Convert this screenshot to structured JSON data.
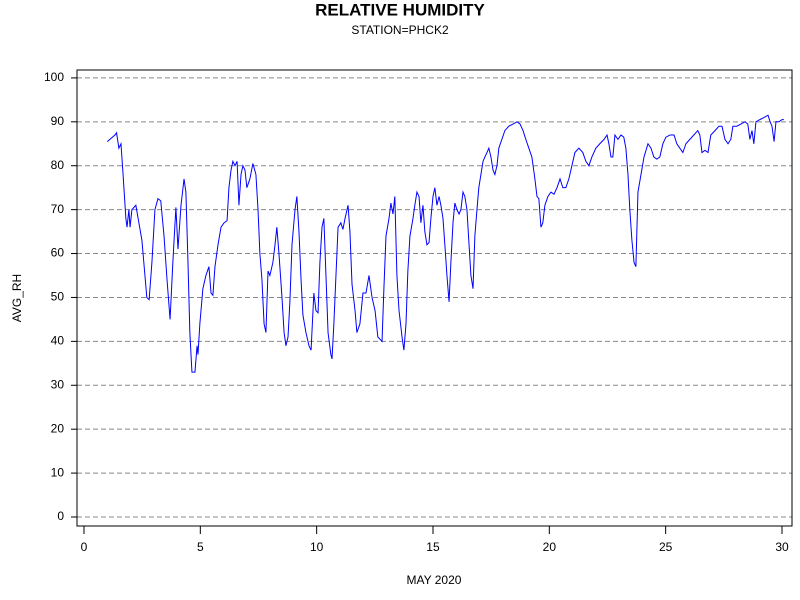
{
  "chart_data": {
    "type": "line",
    "title": "RELATIVE HUMIDITY",
    "subtitle": "STATION=PHCK2",
    "x_label": "MAY 2020",
    "y_label": "AVG_RH",
    "color": "#0000ff",
    "grid": true,
    "xlim": [
      -0.3,
      30.43
    ],
    "xticks": [
      0,
      5,
      10,
      15,
      20,
      25,
      30
    ],
    "ylim": [
      -2.05,
      101.8
    ],
    "yticks": [
      0,
      10,
      20,
      30,
      40,
      50,
      60,
      70,
      80,
      90,
      100
    ],
    "x": [
      1.0,
      1.33,
      1.4,
      1.5,
      1.59,
      1.68,
      1.8,
      1.85,
      1.93,
      1.98,
      2.06,
      2.23,
      2.36,
      2.49,
      2.62,
      2.7,
      2.8,
      2.92,
      3.05,
      3.18,
      3.3,
      3.44,
      3.57,
      3.7,
      3.82,
      3.95,
      4.04,
      4.17,
      4.3,
      4.38,
      4.47,
      4.55,
      4.64,
      4.77,
      4.86,
      4.9,
      4.98,
      5.11,
      5.24,
      5.37,
      5.46,
      5.54,
      5.63,
      5.76,
      5.89,
      6.02,
      6.15,
      6.23,
      6.32,
      6.4,
      6.49,
      6.58,
      6.66,
      6.75,
      6.83,
      6.92,
      7.0,
      7.13,
      7.26,
      7.39,
      7.48,
      7.56,
      7.65,
      7.74,
      7.82,
      7.91,
      7.99,
      8.12,
      8.21,
      8.29,
      8.38,
      8.51,
      8.6,
      8.68,
      8.77,
      8.85,
      8.94,
      9.07,
      9.15,
      9.24,
      9.33,
      9.41,
      9.54,
      9.67,
      9.76,
      9.88,
      9.97,
      10.06,
      10.14,
      10.23,
      10.31,
      10.4,
      10.49,
      10.61,
      10.66,
      10.74,
      10.83,
      10.92,
      11.04,
      11.13,
      11.22,
      11.35,
      11.43,
      11.52,
      11.65,
      11.73,
      11.86,
      11.99,
      12.12,
      12.25,
      12.38,
      12.51,
      12.63,
      12.81,
      12.89,
      12.98,
      13.11,
      13.19,
      13.28,
      13.36,
      13.45,
      13.54,
      13.67,
      13.75,
      13.84,
      13.92,
      14.01,
      14.14,
      14.22,
      14.31,
      14.4,
      14.48,
      14.57,
      14.65,
      14.74,
      14.83,
      14.91,
      15.0,
      15.08,
      15.17,
      15.26,
      15.34,
      15.43,
      15.51,
      15.6,
      15.69,
      15.77,
      15.86,
      15.94,
      16.03,
      16.12,
      16.2,
      16.29,
      16.37,
      16.46,
      16.55,
      16.63,
      16.72,
      16.8,
      16.89,
      16.97,
      17.06,
      17.15,
      17.23,
      17.32,
      17.4,
      17.49,
      17.58,
      17.66,
      17.75,
      17.83,
      17.96,
      18.09,
      18.26,
      18.44,
      18.61,
      18.74,
      18.87,
      18.99,
      19.12,
      19.25,
      19.38,
      19.47,
      19.55,
      19.64,
      19.72,
      19.81,
      19.94,
      20.07,
      20.2,
      20.33,
      20.46,
      20.58,
      20.71,
      20.84,
      20.97,
      21.1,
      21.27,
      21.44,
      21.57,
      21.7,
      21.83,
      22.0,
      22.17,
      22.35,
      22.48,
      22.56,
      22.65,
      22.73,
      22.82,
      22.95,
      23.08,
      23.2,
      23.29,
      23.38,
      23.46,
      23.55,
      23.64,
      23.72,
      23.81,
      23.94,
      24.07,
      24.24,
      24.37,
      24.49,
      24.62,
      24.75,
      24.88,
      25.01,
      25.19,
      25.36,
      25.48,
      25.61,
      25.74,
      25.87,
      26.04,
      26.21,
      26.38,
      26.47,
      26.56,
      26.69,
      26.82,
      26.94,
      27.12,
      27.29,
      27.42,
      27.55,
      27.68,
      27.8,
      27.89,
      28.06,
      28.23,
      28.41,
      28.53,
      28.62,
      28.71,
      28.79,
      28.88,
      29.05,
      29.23,
      29.4,
      29.49,
      29.57,
      29.66,
      29.74,
      29.87,
      30.0,
      30.08
    ],
    "values": [
      85.5,
      87,
      87.5,
      84,
      85,
      78,
      68,
      66,
      70,
      66,
      70,
      71,
      67,
      63,
      55,
      50,
      49.5,
      58,
      70,
      72.5,
      72,
      64,
      54,
      45,
      58,
      70.5,
      61,
      71,
      77,
      74,
      58,
      42,
      33,
      33,
      39,
      37,
      44,
      52,
      55,
      57,
      51,
      50.5,
      57,
      62,
      66,
      67,
      67.5,
      75,
      79,
      81,
      80,
      81,
      71,
      78,
      80,
      79,
      75,
      77,
      80.5,
      78,
      70,
      60,
      54,
      44,
      42,
      56,
      55,
      58,
      62,
      66,
      60,
      50,
      42,
      39,
      41,
      49,
      62,
      70,
      73,
      65,
      54,
      46,
      42,
      39,
      38,
      51,
      47,
      46.5,
      58,
      66,
      68,
      55,
      42,
      37,
      36,
      44,
      55,
      66,
      67,
      65.5,
      68,
      71,
      65,
      53,
      47,
      42,
      44,
      51,
      51,
      55,
      50,
      47,
      41,
      40,
      52,
      64,
      68,
      71.5,
      69,
      73,
      55,
      47,
      41,
      38,
      44,
      56,
      64,
      68,
      71,
      74,
      73,
      67,
      71,
      65,
      62,
      62.5,
      68,
      73,
      75,
      71,
      73,
      71,
      68,
      62,
      55,
      49,
      58,
      67,
      71.5,
      70,
      69,
      70,
      74,
      73,
      70,
      62,
      55,
      52,
      64,
      70,
      75,
      78,
      81,
      82,
      83,
      84,
      82,
      79,
      78,
      80,
      84,
      86,
      88,
      89,
      89.5,
      90,
      89.5,
      88,
      86,
      84,
      82,
      77,
      73,
      72.5,
      66,
      67,
      71,
      73,
      74,
      73.5,
      75,
      77,
      75,
      75,
      77,
      80,
      83,
      84,
      83,
      81,
      80,
      82,
      84,
      85,
      86,
      87,
      85,
      82,
      82,
      87,
      86,
      87,
      86.5,
      84,
      78,
      70,
      63,
      58,
      57,
      74,
      78,
      82,
      85,
      84,
      82,
      81.5,
      82,
      85,
      86.5,
      87,
      87,
      85,
      84,
      83,
      85,
      86,
      87,
      88,
      87,
      83,
      83.5,
      83,
      87,
      88,
      89,
      89,
      86,
      85,
      86,
      89,
      89,
      89.5,
      90,
      89.5,
      86,
      88,
      85,
      90,
      90.5,
      91,
      91.5,
      90,
      89,
      85.5,
      90,
      90,
      90.5,
      90.5
    ]
  }
}
